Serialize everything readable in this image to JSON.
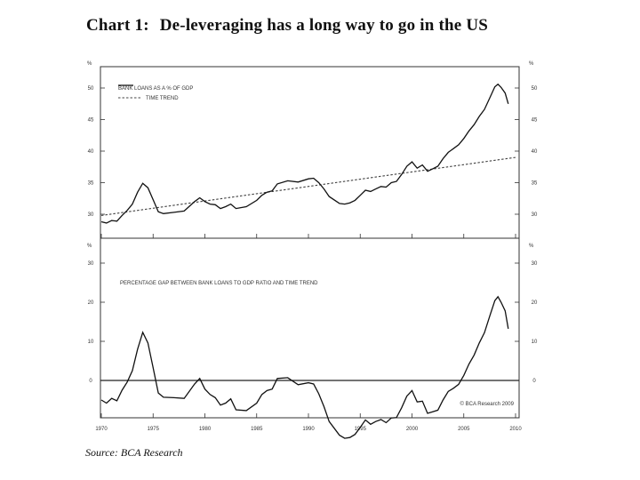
{
  "title": {
    "number": "Chart 1:",
    "text": "De-leveraging has a long way to go in the US"
  },
  "source": "Source: BCA Research",
  "chart_data": [
    {
      "type": "line",
      "panel": "top",
      "unit_label": "%",
      "ylim": [
        27.5,
        52
      ],
      "yticks": [
        30,
        35,
        40,
        45,
        50
      ],
      "xlim": [
        1970,
        2010
      ],
      "legend_position": "top-left",
      "series": [
        {
          "name": "BANK LOANS AS A % OF GDP",
          "style": "solid",
          "x": [
            1970,
            1970.5,
            1971,
            1971.5,
            1972,
            1972.5,
            1973,
            1973.5,
            1974,
            1974.5,
            1975,
            1975.5,
            1976,
            1977,
            1978,
            1979,
            1979.5,
            1980,
            1980.5,
            1981,
            1981.5,
            1982,
            1982.5,
            1983,
            1984,
            1985,
            1985.5,
            1986,
            1986.5,
            1987,
            1988,
            1989,
            1990,
            1990.5,
            1991,
            1991.5,
            1992,
            1993,
            1993.5,
            1994,
            1994.5,
            1995,
            1995.5,
            1996,
            1996.5,
            1997,
            1997.5,
            1998,
            1998.5,
            1999,
            1999.5,
            2000,
            2000.5,
            2001,
            2001.5,
            2002,
            2002.5,
            2003,
            2003.5,
            2004,
            2004.5,
            2005,
            2005.5,
            2006,
            2006.5,
            2007,
            2007.5,
            2008,
            2008.3,
            2008.6,
            2009,
            2009.3
          ],
          "values": [
            28.8,
            28.6,
            29.0,
            28.9,
            29.8,
            30.6,
            31.6,
            33.5,
            34.9,
            34.2,
            32.3,
            30.4,
            30.1,
            30.3,
            30.5,
            32.0,
            32.6,
            32.0,
            31.6,
            31.5,
            30.9,
            31.2,
            31.6,
            30.9,
            31.2,
            32.2,
            33.0,
            33.5,
            33.7,
            34.8,
            35.3,
            35.1,
            35.6,
            35.7,
            35.0,
            34.0,
            32.8,
            31.7,
            31.6,
            31.8,
            32.2,
            33.0,
            33.8,
            33.6,
            34.0,
            34.4,
            34.3,
            35.0,
            35.2,
            36.3,
            37.6,
            38.3,
            37.3,
            37.8,
            36.8,
            37.2,
            37.6,
            38.8,
            39.8,
            40.4,
            41.0,
            42.0,
            43.2,
            44.2,
            45.5,
            46.6,
            48.4,
            50.2,
            50.6,
            50.1,
            49.2,
            47.5
          ]
        },
        {
          "name": "TIME TREND",
          "style": "dashed",
          "x": [
            1970,
            2010
          ],
          "values": [
            29.8,
            39.0
          ]
        }
      ]
    },
    {
      "type": "line",
      "panel": "bottom",
      "unit_label": "%",
      "ylim": [
        -9.5,
        32.5
      ],
      "yticks": [
        0,
        10,
        20,
        30
      ],
      "xlim": [
        1970,
        2010
      ],
      "xticks": [
        1970,
        1975,
        1980,
        1985,
        1990,
        1995,
        2000,
        2005,
        2010
      ],
      "zero_line": true,
      "annotation": "© BCA Research 2009",
      "series": [
        {
          "name": "PERCENTAGE GAP BETWEEN BANK LOANS TO GDP RATIO AND TIME TREND",
          "style": "solid",
          "x": [
            1970,
            1970.5,
            1971,
            1971.5,
            1972,
            1972.5,
            1973,
            1973.5,
            1974,
            1974.5,
            1975,
            1975.5,
            1976,
            1977,
            1978,
            1979,
            1979.5,
            1980,
            1980.5,
            1981,
            1981.5,
            1982,
            1982.5,
            1983,
            1984,
            1985,
            1985.5,
            1986,
            1986.5,
            1987,
            1988,
            1989,
            1990,
            1990.5,
            1991,
            1991.5,
            1992,
            1993,
            1993.5,
            1994,
            1994.5,
            1995,
            1995.5,
            1996,
            1996.5,
            1997,
            1997.5,
            1998,
            1998.5,
            1999,
            1999.5,
            2000,
            2000.5,
            2001,
            2001.5,
            2002,
            2002.5,
            2003,
            2003.5,
            2004,
            2004.5,
            2005,
            2005.5,
            2006,
            2006.5,
            2007,
            2007.5,
            2008,
            2008.3,
            2008.6,
            2009,
            2009.3
          ],
          "values": [
            -5.0,
            -5.8,
            -4.6,
            -5.2,
            -2.5,
            -0.4,
            2.5,
            8.0,
            12.3,
            9.6,
            3.2,
            -3.2,
            -4.3,
            -4.4,
            -4.6,
            -0.9,
            0.5,
            -2.2,
            -3.6,
            -4.4,
            -6.3,
            -5.8,
            -4.7,
            -7.5,
            -7.7,
            -5.8,
            -3.6,
            -2.6,
            -2.2,
            0.5,
            0.7,
            -1.1,
            -0.6,
            -0.9,
            -3.4,
            -6.7,
            -10.5,
            -14.0,
            -14.8,
            -14.6,
            -13.8,
            -12.0,
            -10.1,
            -11.2,
            -10.5,
            -10.0,
            -10.8,
            -9.6,
            -9.5,
            -7.0,
            -4.0,
            -2.6,
            -5.5,
            -5.3,
            -8.4,
            -8.0,
            -7.6,
            -5.0,
            -2.8,
            -2.0,
            -1.0,
            1.3,
            4.2,
            6.5,
            9.6,
            12.2,
            16.4,
            20.4,
            21.4,
            20.0,
            17.8,
            13.2
          ]
        }
      ]
    }
  ]
}
